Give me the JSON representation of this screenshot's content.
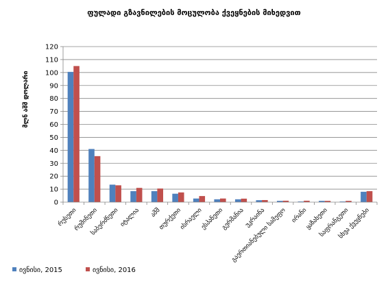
{
  "chart_data": {
    "type": "bar",
    "title": "ფულადი გზავნილების მოცულობა ქვეყნების მიხედვით",
    "xlabel": "",
    "ylabel": "მლნ აშშ დოლარი",
    "ylim": [
      0,
      120
    ],
    "yticks": [
      0,
      10,
      20,
      30,
      40,
      50,
      60,
      70,
      80,
      90,
      100,
      110,
      120
    ],
    "grid": true,
    "legend_position": "bottom-left",
    "categories": [
      "რუსეთი",
      "რუმინეთი",
      "საბერძნეთი",
      "იტალია",
      "აშშ",
      "თურქეთი",
      "ისრაელი",
      "ესპანეთი",
      "გერმანია",
      "უკრაინა",
      "გაერთიანებული სამეფო",
      "ირანი",
      "ყაზახეთი",
      "საფრანგეთი",
      "სხვა ქვეყნები"
    ],
    "series": [
      {
        "name": "ივნისი, 2015",
        "color": "#4F81BD",
        "values": [
          100.5,
          41,
          13.5,
          8.5,
          8.5,
          6.5,
          2.8,
          2.2,
          2.2,
          1.5,
          1,
          0.5,
          1,
          0.5,
          8
        ]
      },
      {
        "name": "ივნისი, 2016",
        "color": "#C0504D",
        "values": [
          105,
          35.5,
          13,
          11,
          10.5,
          7.5,
          4.7,
          2.8,
          2.7,
          1.6,
          1.1,
          1.1,
          1,
          1,
          8.5
        ]
      }
    ]
  }
}
